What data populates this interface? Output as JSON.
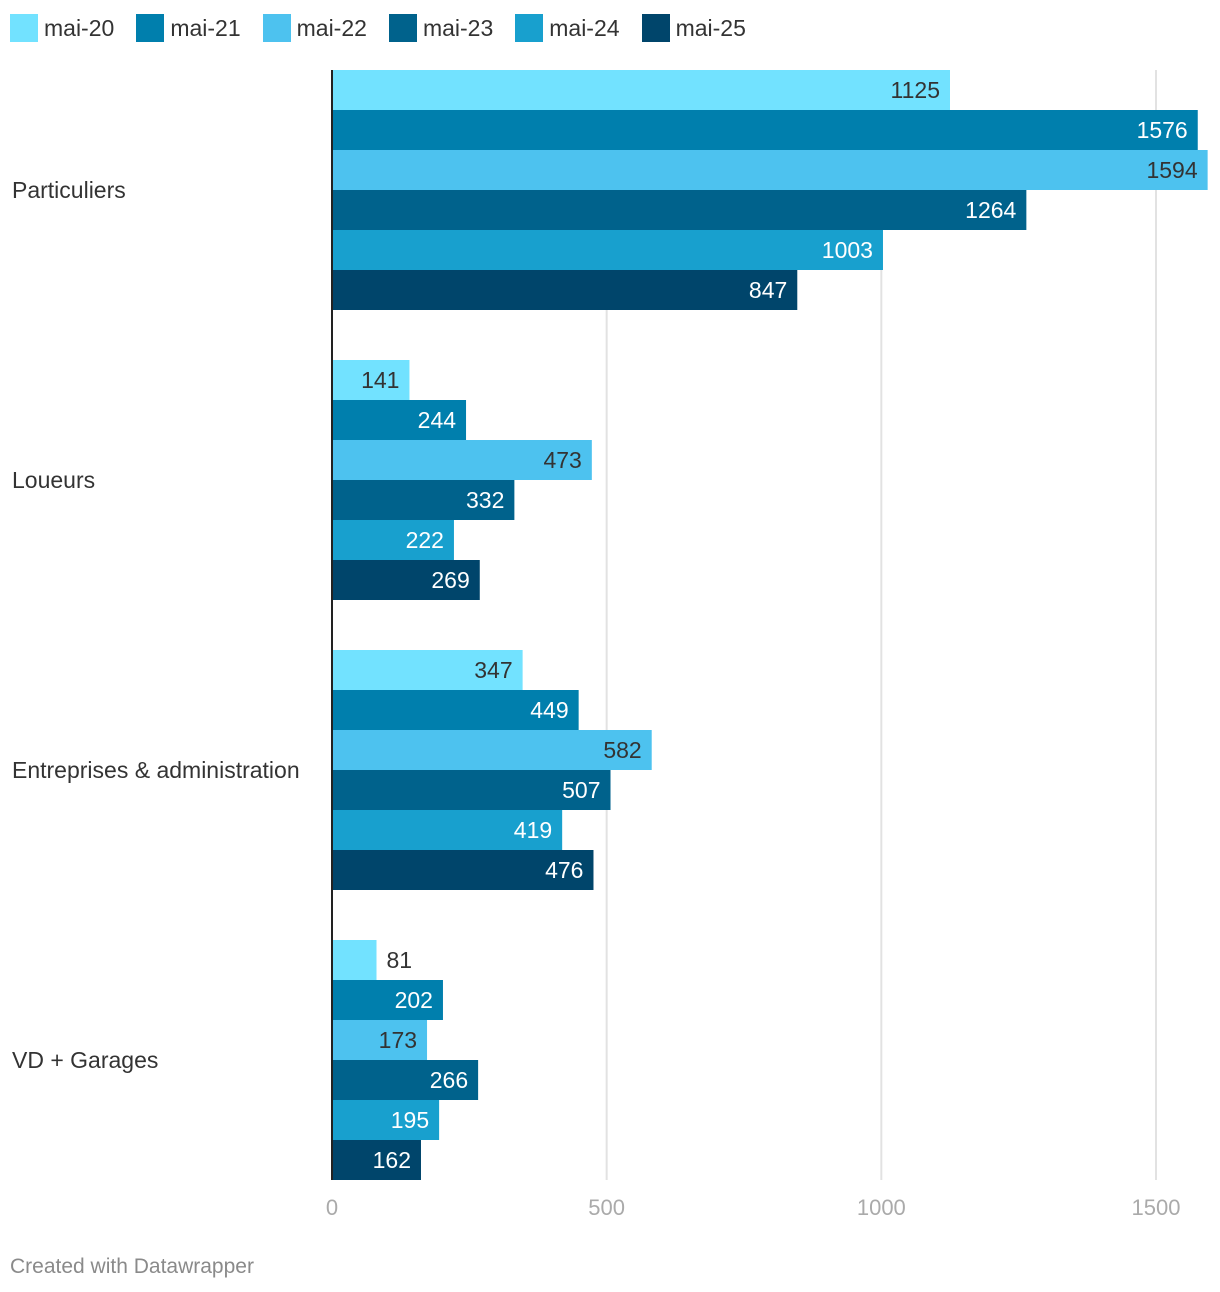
{
  "chart_data": {
    "type": "bar",
    "orientation": "horizontal",
    "categories": [
      "Particuliers",
      "Loueurs",
      "Entreprises & administration",
      "VD + Garages"
    ],
    "series": [
      {
        "name": "mai-20",
        "color": "#72E2FF",
        "values": [
          1125,
          141,
          347,
          81
        ]
      },
      {
        "name": "mai-21",
        "color": "#007FAD",
        "values": [
          1576,
          244,
          449,
          202
        ]
      },
      {
        "name": "mai-22",
        "color": "#4DC2EF",
        "values": [
          1594,
          473,
          582,
          173
        ]
      },
      {
        "name": "mai-23",
        "color": "#00628C",
        "values": [
          1264,
          332,
          507,
          266
        ]
      },
      {
        "name": "mai-24",
        "color": "#18A0CE",
        "values": [
          1003,
          222,
          419,
          195
        ]
      },
      {
        "name": "mai-25",
        "color": "#00456B",
        "values": [
          847,
          269,
          476,
          162
        ]
      }
    ],
    "xlim": [
      0,
      1600
    ],
    "xticks": [
      0,
      500,
      1000,
      1500
    ],
    "grid": true,
    "legend_position": "top-left"
  },
  "footer": {
    "credit": "Created with Datawrapper"
  }
}
